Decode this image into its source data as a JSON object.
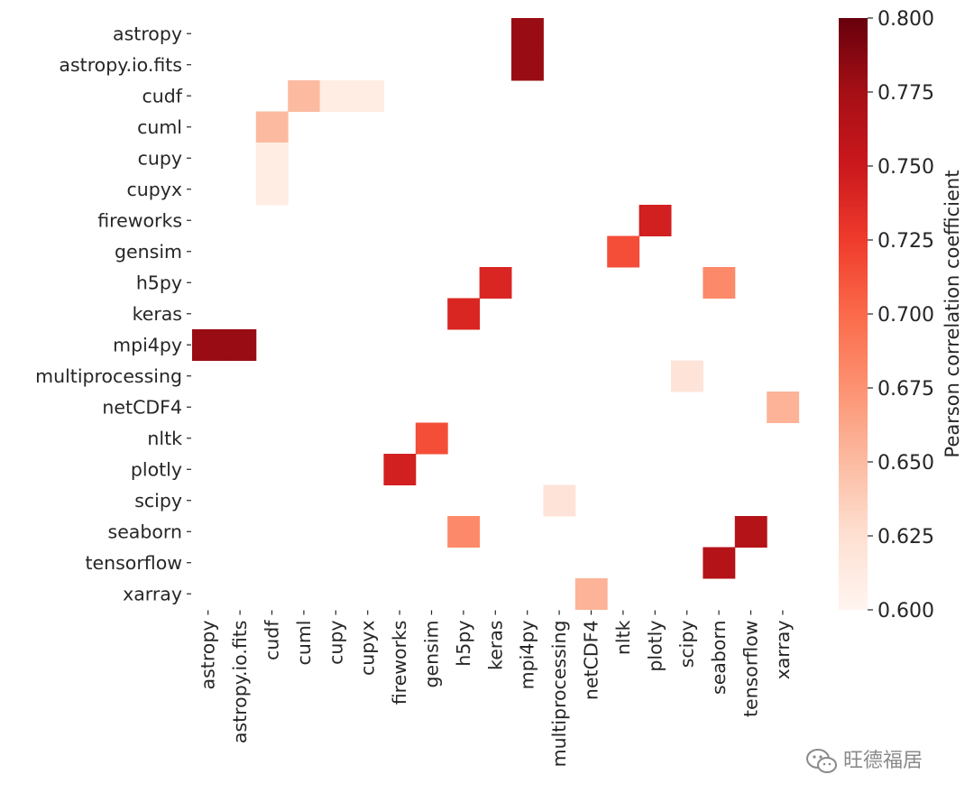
{
  "chart_data": {
    "type": "heatmap",
    "rows": [
      "astropy",
      "astropy.io.fits",
      "cudf",
      "cuml",
      "cupy",
      "cupyx",
      "fireworks",
      "gensim",
      "h5py",
      "keras",
      "mpi4py",
      "multiprocessing",
      "netCDF4",
      "nltk",
      "plotly",
      "scipy",
      "seaborn",
      "tensorflow",
      "xarray"
    ],
    "columns": [
      "astropy",
      "astropy.io.fits",
      "cudf",
      "cuml",
      "cupy",
      "cupyx",
      "fireworks",
      "gensim",
      "h5py",
      "keras",
      "mpi4py",
      "multiprocessing",
      "netCDF4",
      "nltk",
      "plotly",
      "scipy",
      "seaborn",
      "tensorflow",
      "xarray"
    ],
    "cells": [
      {
        "row": "astropy",
        "col": "mpi4py",
        "value": 0.78
      },
      {
        "row": "astropy.io.fits",
        "col": "mpi4py",
        "value": 0.78
      },
      {
        "row": "cudf",
        "col": "cuml",
        "value": 0.65
      },
      {
        "row": "cudf",
        "col": "cupy",
        "value": 0.61
      },
      {
        "row": "cudf",
        "col": "cupyx",
        "value": 0.61
      },
      {
        "row": "cuml",
        "col": "cudf",
        "value": 0.65
      },
      {
        "row": "cupy",
        "col": "cudf",
        "value": 0.61
      },
      {
        "row": "cupyx",
        "col": "cudf",
        "value": 0.61
      },
      {
        "row": "fireworks",
        "col": "plotly",
        "value": 0.745
      },
      {
        "row": "gensim",
        "col": "nltk",
        "value": 0.715
      },
      {
        "row": "h5py",
        "col": "keras",
        "value": 0.74
      },
      {
        "row": "h5py",
        "col": "seaborn",
        "value": 0.68
      },
      {
        "row": "keras",
        "col": "h5py",
        "value": 0.74
      },
      {
        "row": "mpi4py",
        "col": "astropy",
        "value": 0.78
      },
      {
        "row": "mpi4py",
        "col": "astropy.io.fits",
        "value": 0.78
      },
      {
        "row": "multiprocessing",
        "col": "scipy",
        "value": 0.62
      },
      {
        "row": "netCDF4",
        "col": "xarray",
        "value": 0.655
      },
      {
        "row": "nltk",
        "col": "gensim",
        "value": 0.715
      },
      {
        "row": "plotly",
        "col": "fireworks",
        "value": 0.745
      },
      {
        "row": "scipy",
        "col": "multiprocessing",
        "value": 0.62
      },
      {
        "row": "seaborn",
        "col": "h5py",
        "value": 0.68
      },
      {
        "row": "seaborn",
        "col": "tensorflow",
        "value": 0.765
      },
      {
        "row": "tensorflow",
        "col": "seaborn",
        "value": 0.765
      },
      {
        "row": "xarray",
        "col": "netCDF4",
        "value": 0.655
      }
    ],
    "colorbar": {
      "label": "Pearson correlation coefficient",
      "min": 0.6,
      "max": 0.8,
      "ticks": [
        "0.600",
        "0.625",
        "0.650",
        "0.675",
        "0.700",
        "0.725",
        "0.750",
        "0.775",
        "0.800"
      ],
      "colormap": [
        "#fff5f0",
        "#fee0d2",
        "#fcbba1",
        "#fc9272",
        "#fb6a4a",
        "#ef3b2c",
        "#cb181d",
        "#a50f15",
        "#67000d"
      ]
    },
    "grid": false,
    "legend_placement": "right"
  },
  "watermark": {
    "text": "旺德福居",
    "icon": "wechat-icon"
  }
}
